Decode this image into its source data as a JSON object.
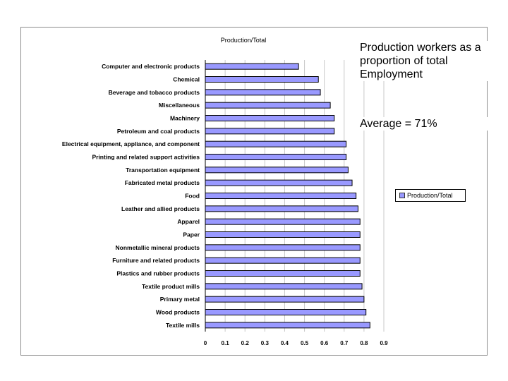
{
  "notes": {
    "main": "Production workers as a proportion of total Employment",
    "average": "Average = 71%"
  },
  "chart_data": {
    "type": "bar",
    "orientation": "horizontal",
    "title": "Production/Total",
    "categories": [
      "Computer and electronic products",
      "Chemical",
      "Beverage and tobacco products",
      "Miscellaneous",
      "Machinery",
      "Petroleum and coal products",
      "Electrical equipment, appliance, and component",
      "Printing and related support activities",
      "Transportation equipment",
      "Fabricated metal products",
      "Food",
      "Leather and allied products",
      "Apparel",
      "Paper",
      "Nonmetallic mineral products",
      "Furniture and related products",
      "Plastics and rubber products",
      "Textile product mills",
      "Primary metal",
      "Wood products",
      "Textile mills"
    ],
    "series": [
      {
        "name": "Production/Total",
        "color": "#9999ff",
        "values": [
          0.47,
          0.57,
          0.58,
          0.63,
          0.65,
          0.65,
          0.71,
          0.71,
          0.72,
          0.74,
          0.76,
          0.77,
          0.78,
          0.78,
          0.78,
          0.78,
          0.78,
          0.79,
          0.8,
          0.81,
          0.83
        ]
      }
    ],
    "xlim": [
      0,
      0.9
    ],
    "xticks": [
      "0",
      "0.1",
      "0.2",
      "0.3",
      "0.4",
      "0.5",
      "0.6",
      "0.7",
      "0.8",
      "0.9"
    ],
    "grid": "vertical",
    "legend": "right",
    "xlabel": "",
    "ylabel": ""
  }
}
